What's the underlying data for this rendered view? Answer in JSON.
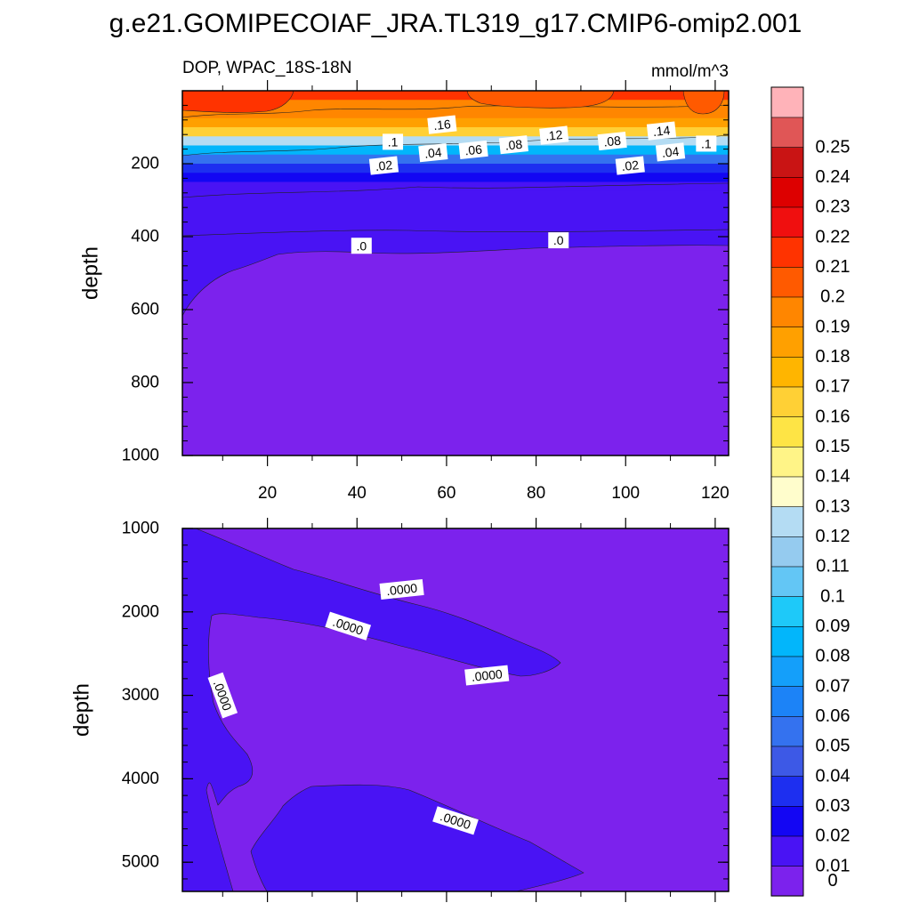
{
  "figure": {
    "title": "g.e21.GOMIPECOIAF_JRA.TL319_g17.CMIP6-omip2.001",
    "left_string": "DOP, WPAC_18S-18N",
    "right_string": "mmol/m^3"
  },
  "chart_data": [
    {
      "type": "heatmap",
      "panel": "upper",
      "variable": "DOP",
      "region": "WPAC_18S-18N",
      "units": "mmol/m^3",
      "xlabel": "",
      "ylabel": "depth",
      "xlim": [
        1,
        123
      ],
      "ylim": [
        1000,
        0
      ],
      "y_reversed": true,
      "xticks": [
        20,
        40,
        60,
        80,
        100,
        120
      ],
      "yticks": [
        200,
        400,
        600,
        800,
        1000
      ],
      "xtick_labels": [
        "20",
        "40",
        "60",
        "80",
        "100",
        "120"
      ],
      "ytick_labels": [
        "200",
        "400",
        "600",
        "800",
        "1000"
      ],
      "profile": {
        "depth": [
          25,
          75,
          100,
          125,
          150,
          175,
          200,
          225,
          250,
          275,
          300,
          400,
          450,
          600,
          800,
          1000
        ],
        "value": [
          0.2,
          0.185,
          0.17,
          0.15,
          0.11,
          0.07,
          0.045,
          0.025,
          0.014,
          0.008,
          0.004,
          0.002,
          0.0008,
          0.0003,
          0.0001,
          5e-05
        ]
      },
      "contour_labels": [
        {
          "text": ".16",
          "x": 59,
          "depth": 93
        },
        {
          "text": ".14",
          "x": 108,
          "depth": 110
        },
        {
          "text": ".12",
          "x": 84,
          "depth": 122
        },
        {
          "text": ".1",
          "x": 48,
          "depth": 140
        },
        {
          "text": ".1",
          "x": 118,
          "depth": 145
        },
        {
          "text": ".08",
          "x": 75,
          "depth": 148
        },
        {
          "text": ".08",
          "x": 97,
          "depth": 138
        },
        {
          "text": ".06",
          "x": 66,
          "depth": 162
        },
        {
          "text": ".04",
          "x": 57,
          "depth": 170
        },
        {
          "text": ".04",
          "x": 110,
          "depth": 168
        },
        {
          "text": ".02",
          "x": 46,
          "depth": 205
        },
        {
          "text": ".02",
          "x": 101,
          "depth": 205
        },
        {
          "text": ".0",
          "x": 41,
          "depth": 425
        },
        {
          "text": ".0",
          "x": 85,
          "depth": 410
        }
      ]
    },
    {
      "type": "heatmap",
      "panel": "lower",
      "variable": "DOP",
      "xlabel": "",
      "ylabel": "depth",
      "xlim": [
        1,
        123
      ],
      "ylim": [
        5350,
        1000
      ],
      "y_reversed": true,
      "yticks": [
        1000,
        2000,
        3000,
        4000,
        5000
      ],
      "ytick_labels": [
        "1000",
        "2000",
        "3000",
        "4000",
        "5000"
      ],
      "contour_labels": [
        {
          "text": ".0000",
          "x": 50,
          "depth": 1730
        },
        {
          "text": ".0000",
          "x": 38,
          "depth": 2170
        },
        {
          "text": ".0000",
          "x": 10,
          "depth": 3000
        },
        {
          "text": ".0000",
          "x": 69,
          "depth": 2760
        },
        {
          "text": ".0000",
          "x": 62,
          "depth": 4500
        }
      ]
    }
  ],
  "colorbar": {
    "levels": [
      "0",
      "0.01",
      "0.02",
      "0.03",
      "0.04",
      "0.05",
      "0.06",
      "0.07",
      "0.08",
      "0.09",
      "0.1",
      "0.11",
      "0.12",
      "0.13",
      "0.14",
      "0.15",
      "0.16",
      "0.17",
      "0.18",
      "0.19",
      "0.2",
      "0.21",
      "0.22",
      "0.23",
      "0.24",
      "0.25"
    ],
    "colors": [
      "#7c22ed",
      "#4913f4",
      "#1306f3",
      "#1d2ff0",
      "#3d59e6",
      "#3472ef",
      "#1c83f7",
      "#149ffa",
      "#02b6fb",
      "#1ec9f9",
      "#63c6f5",
      "#95cbef",
      "#b4dcf3",
      "#fffdcc",
      "#fff487",
      "#fee445",
      "#ffd035",
      "#ffb500",
      "#ffa000",
      "#ff8600",
      "#ff5a00",
      "#ff3300",
      "#f00f0f",
      "#dd0000",
      "#c91414",
      "#e05656",
      "#ffb3b9"
    ]
  }
}
